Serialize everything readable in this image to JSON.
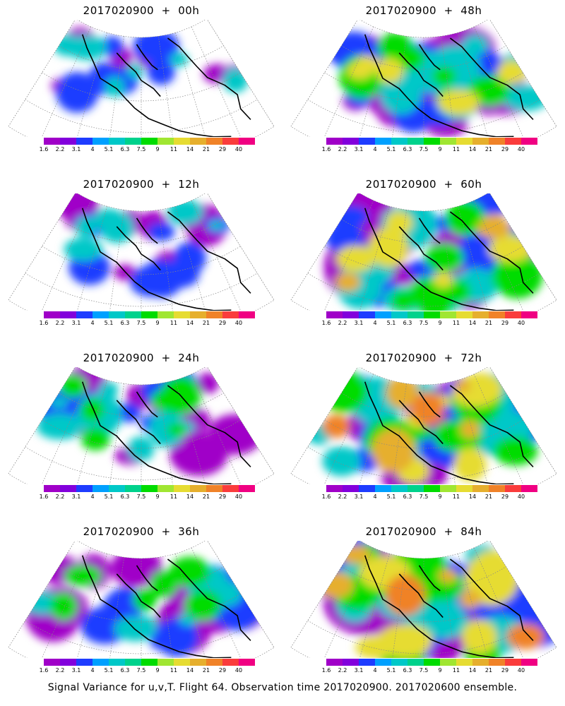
{
  "panels": [
    {
      "title": "2017020900  +  00h",
      "intensity": 0.3
    },
    {
      "title": "2017020900  +  48h",
      "intensity": 0.7
    },
    {
      "title": "2017020900  +  12h",
      "intensity": 0.35
    },
    {
      "title": "2017020900  +  60h",
      "intensity": 0.75
    },
    {
      "title": "2017020900  +  24h",
      "intensity": 0.45
    },
    {
      "title": "2017020900  +  72h",
      "intensity": 0.85
    },
    {
      "title": "2017020900  +  36h",
      "intensity": 0.55
    },
    {
      "title": "2017020900  +  84h",
      "intensity": 0.95
    }
  ],
  "colorbar": {
    "labels": [
      "1.6",
      "2.2",
      "3.1",
      "4",
      "5.1",
      "6.3",
      "7.5",
      "9",
      "11",
      "14",
      "21",
      "29",
      "40"
    ],
    "colors": [
      "#a000c8",
      "#8200dc",
      "#1e3cff",
      "#00a0ff",
      "#00c8c8",
      "#00d28c",
      "#00dc00",
      "#a0e632",
      "#e6dc32",
      "#e6af2d",
      "#f08228",
      "#fa3c3c",
      "#f00082"
    ]
  },
  "caption": "Signal Variance for u,v,T. Flight 64. Observation time 2017020900. 2017020600 ensemble."
}
